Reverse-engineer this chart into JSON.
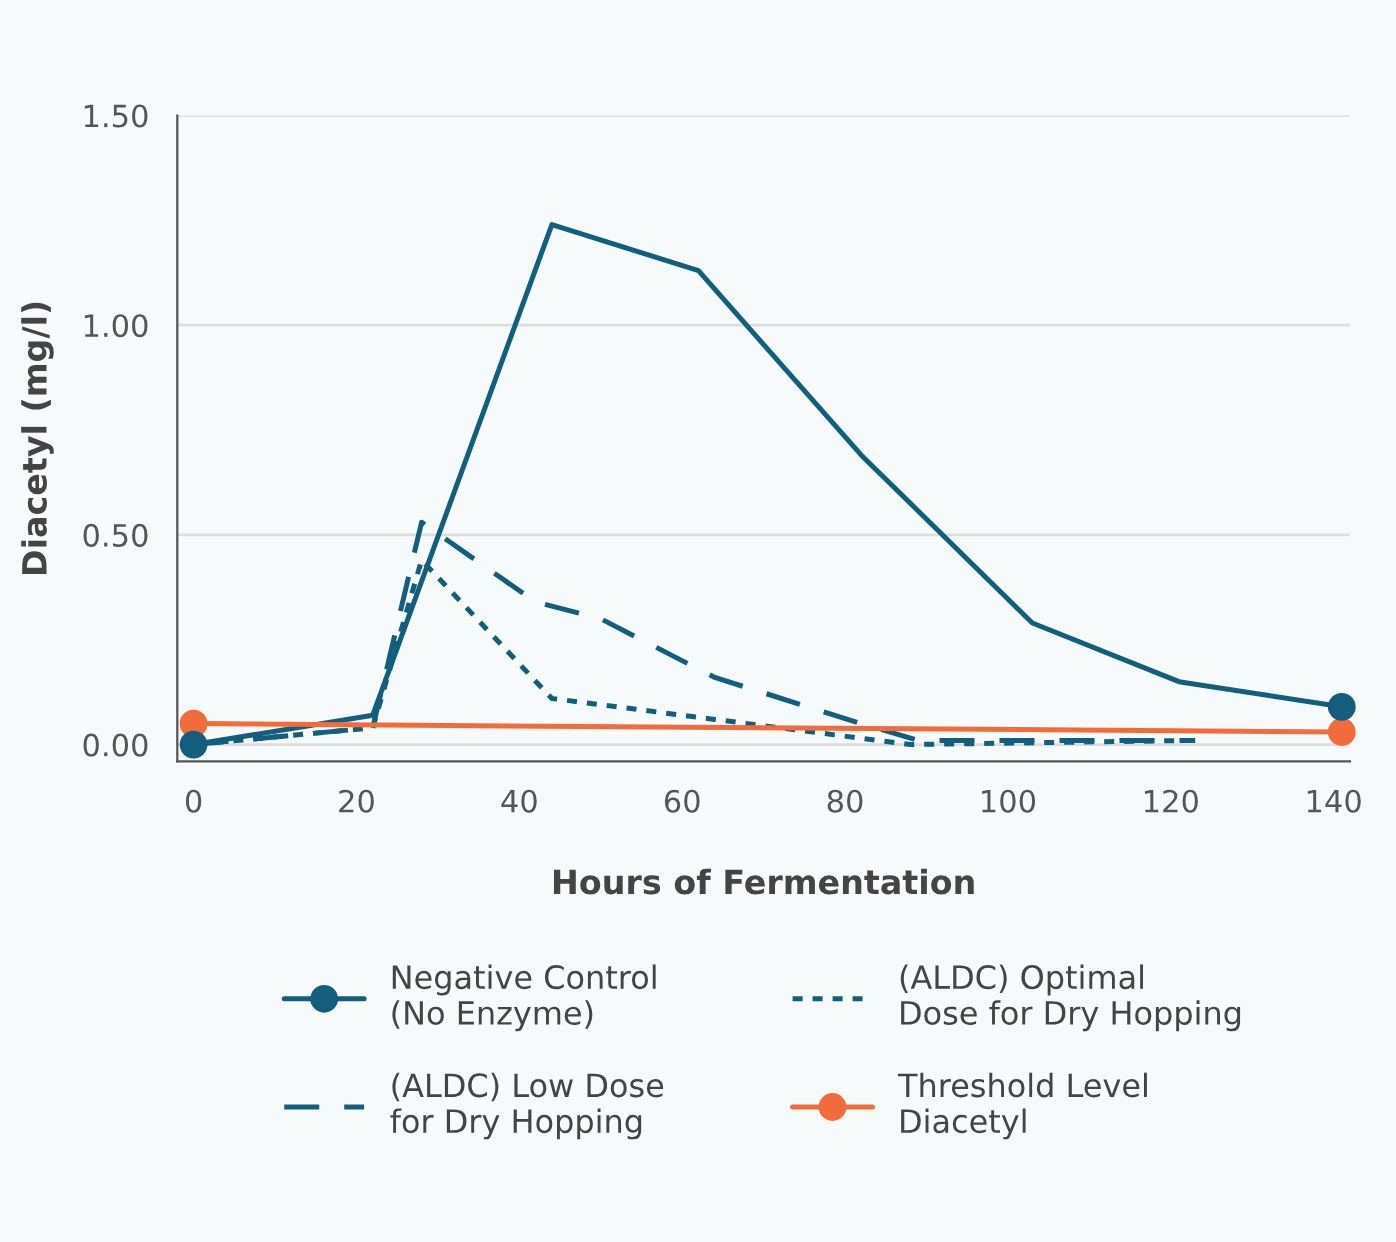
{
  "chart_data": {
    "type": "line",
    "xlabel": "Hours of Fermentation",
    "ylabel": "Diacetyl (mg/l)",
    "xlim": [
      -2,
      142
    ],
    "xticks": [
      0,
      20,
      40,
      60,
      80,
      100,
      120,
      140
    ],
    "ylim": [
      -0.04,
      1.5
    ],
    "yticks": [
      {
        "value": 0,
        "label": "0.00"
      },
      {
        "value": 0.5,
        "label": "0.50"
      },
      {
        "value": 1.0,
        "label": "1.00"
      },
      {
        "value": 1.5,
        "label": "1.50"
      }
    ],
    "grid": "y",
    "legend": "bottom",
    "series": [
      {
        "name": "Negative Control\n(No Enzyme)",
        "color": "#135e7c",
        "line_style": "solid",
        "marker": "none",
        "x": [
          0,
          22,
          44,
          62,
          82,
          103,
          121,
          141
        ],
        "values": [
          0.0,
          0.07,
          1.24,
          1.13,
          0.69,
          0.29,
          0.15,
          0.09
        ]
      },
      {
        "type": "scatter",
        "color": "#135e7c",
        "marker": "circle",
        "x": [
          0,
          141
        ],
        "values": [
          0.0,
          0.09
        ]
      },
      {
        "name": "(ALDC) Low Dose\nfor Dry Hopping",
        "color": "#135e7c",
        "line_style": "dashed",
        "marker": "none",
        "x": [
          0,
          22,
          28,
          42,
          50,
          64,
          82,
          89,
          123
        ],
        "values": [
          0.0,
          0.04,
          0.53,
          0.34,
          0.3,
          0.16,
          0.05,
          0.01,
          0.01
        ]
      },
      {
        "name": "(ALDC) Optimal\nDose for Dry Hopping",
        "color": "#135e7c",
        "line_style": "dotted",
        "marker": "none",
        "x": [
          0,
          22,
          28,
          44,
          64,
          88,
          123
        ],
        "values": [
          0.0,
          0.04,
          0.44,
          0.11,
          0.06,
          0.0,
          0.01
        ]
      },
      {
        "name": "Threshold Level\nDiacetyl",
        "color": "#f26b3a",
        "line_style": "solid",
        "marker": "circle",
        "x": [
          0,
          141
        ],
        "values": [
          0.05,
          0.03
        ]
      }
    ]
  }
}
